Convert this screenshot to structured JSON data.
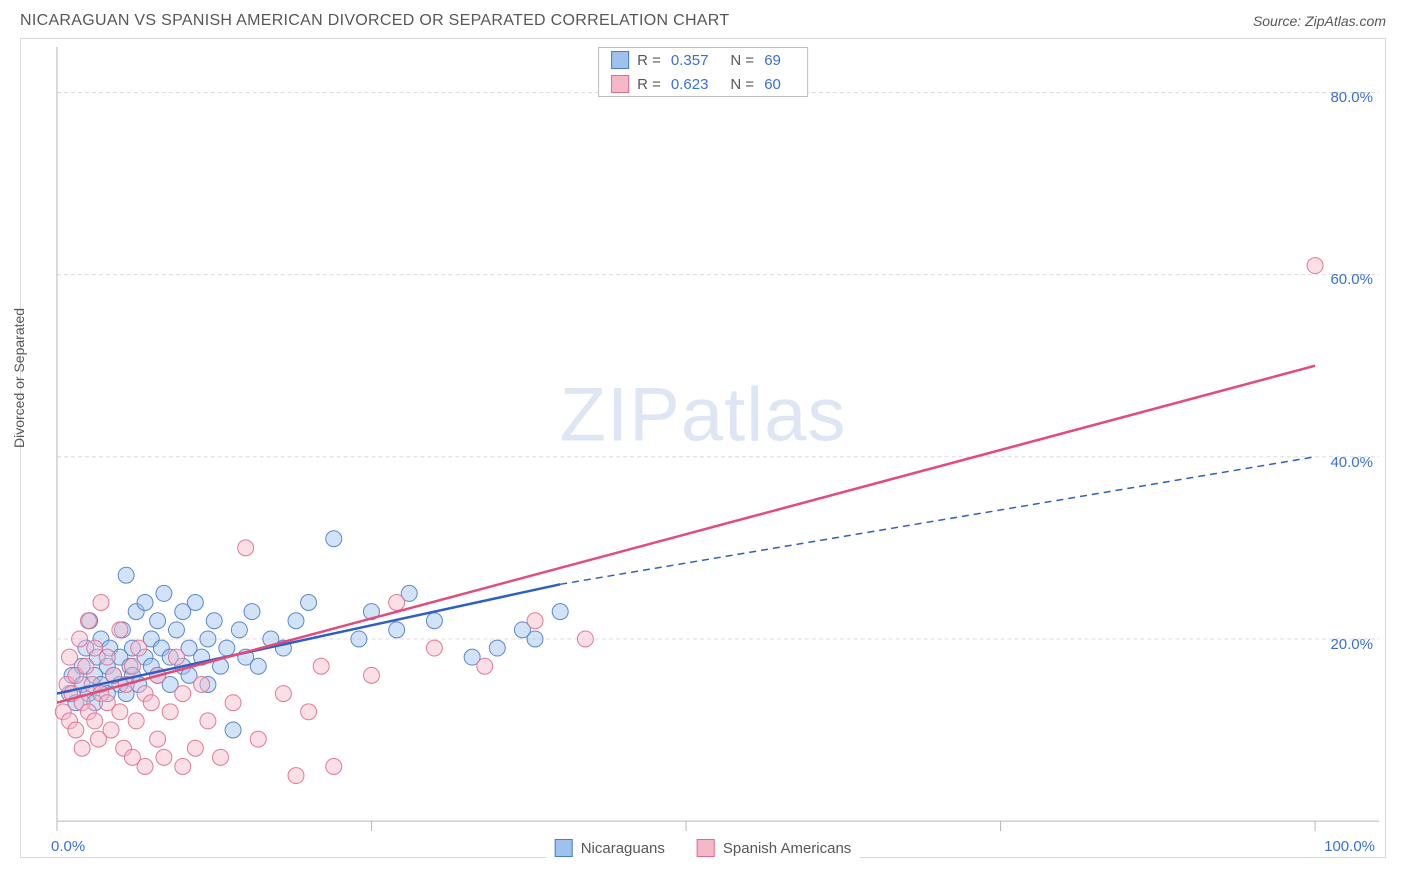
{
  "title": "NICARAGUAN VS SPANISH AMERICAN DIVORCED OR SEPARATED CORRELATION CHART",
  "source": "Source: ZipAtlas.com",
  "watermark": "ZIPatlas",
  "ylabel": "Divorced or Separated",
  "chart": {
    "type": "scatter",
    "background_color": "#ffffff",
    "grid_color": "#dcdcdc",
    "grid_dash": "4,3",
    "axis_color": "#b8b8b8",
    "xlim": [
      0,
      100
    ],
    "ylim": [
      0,
      85
    ],
    "x_ticks": [
      0,
      100
    ],
    "x_tick_labels": [
      "0.0%",
      "100.0%"
    ],
    "y_ticks": [
      20,
      40,
      60,
      80
    ],
    "y_tick_labels": [
      "20.0%",
      "40.0%",
      "60.0%",
      "80.0%"
    ],
    "tick_label_color": "#3a6fd8",
    "tick_fontsize": 15,
    "marker_radius": 8,
    "marker_opacity": 0.45,
    "marker_stroke_opacity": 0.9,
    "series": [
      {
        "name": "Nicaraguans",
        "color_fill": "#9ec1ed",
        "color_stroke": "#4a7cc9",
        "r": 0.357,
        "n": 69,
        "trend": {
          "x1": 0,
          "y1": 14,
          "x2": 40,
          "y2": 26,
          "color": "#2d5fc4",
          "width": 2.5,
          "extend_x2": 100,
          "extend_y2": 40,
          "dash": "7,5"
        },
        "points": [
          [
            1,
            14
          ],
          [
            1.2,
            16
          ],
          [
            1.5,
            13
          ],
          [
            2,
            15
          ],
          [
            2,
            17
          ],
          [
            2.3,
            19
          ],
          [
            2.5,
            14
          ],
          [
            2.6,
            22
          ],
          [
            3,
            16
          ],
          [
            3,
            13
          ],
          [
            3.2,
            18
          ],
          [
            3.5,
            15
          ],
          [
            3.5,
            20
          ],
          [
            4,
            17
          ],
          [
            4,
            14
          ],
          [
            4.2,
            19
          ],
          [
            4.5,
            16
          ],
          [
            5,
            15
          ],
          [
            5,
            18
          ],
          [
            5.2,
            21
          ],
          [
            5.5,
            14
          ],
          [
            5.5,
            27
          ],
          [
            5.8,
            17
          ],
          [
            6,
            16
          ],
          [
            6,
            19
          ],
          [
            6.3,
            23
          ],
          [
            6.5,
            15
          ],
          [
            7,
            18
          ],
          [
            7,
            24
          ],
          [
            7.5,
            17
          ],
          [
            7.5,
            20
          ],
          [
            8,
            16
          ],
          [
            8,
            22
          ],
          [
            8.3,
            19
          ],
          [
            8.5,
            25
          ],
          [
            9,
            18
          ],
          [
            9,
            15
          ],
          [
            9.5,
            21
          ],
          [
            10,
            17
          ],
          [
            10,
            23
          ],
          [
            10.5,
            16
          ],
          [
            10.5,
            19
          ],
          [
            11,
            24
          ],
          [
            11.5,
            18
          ],
          [
            12,
            20
          ],
          [
            12,
            15
          ],
          [
            12.5,
            22
          ],
          [
            13,
            17
          ],
          [
            13.5,
            19
          ],
          [
            14,
            10
          ],
          [
            14.5,
            21
          ],
          [
            15,
            18
          ],
          [
            15.5,
            23
          ],
          [
            16,
            17
          ],
          [
            17,
            20
          ],
          [
            18,
            19
          ],
          [
            19,
            22
          ],
          [
            20,
            24
          ],
          [
            22,
            31
          ],
          [
            24,
            20
          ],
          [
            25,
            23
          ],
          [
            27,
            21
          ],
          [
            28,
            25
          ],
          [
            30,
            22
          ],
          [
            33,
            18
          ],
          [
            35,
            19
          ],
          [
            37,
            21
          ],
          [
            38,
            20
          ],
          [
            40,
            23
          ]
        ]
      },
      {
        "name": "Spanish Americans",
        "color_fill": "#f5b8c9",
        "color_stroke": "#e06b8f",
        "r": 0.623,
        "n": 60,
        "trend": {
          "x1": 0,
          "y1": 13,
          "x2": 100,
          "y2": 50,
          "color": "#e34b7a",
          "width": 2.5
        },
        "points": [
          [
            0.5,
            12
          ],
          [
            0.8,
            15
          ],
          [
            1,
            11
          ],
          [
            1,
            18
          ],
          [
            1.2,
            14
          ],
          [
            1.5,
            10
          ],
          [
            1.5,
            16
          ],
          [
            1.8,
            20
          ],
          [
            2,
            13
          ],
          [
            2,
            8
          ],
          [
            2.3,
            17
          ],
          [
            2.5,
            12
          ],
          [
            2.5,
            22
          ],
          [
            2.8,
            15
          ],
          [
            3,
            11
          ],
          [
            3,
            19
          ],
          [
            3.3,
            9
          ],
          [
            3.5,
            14
          ],
          [
            3.5,
            24
          ],
          [
            4,
            13
          ],
          [
            4,
            18
          ],
          [
            4.3,
            10
          ],
          [
            4.5,
            16
          ],
          [
            5,
            12
          ],
          [
            5,
            21
          ],
          [
            5.3,
            8
          ],
          [
            5.5,
            15
          ],
          [
            6,
            7
          ],
          [
            6,
            17
          ],
          [
            6.3,
            11
          ],
          [
            6.5,
            19
          ],
          [
            7,
            6
          ],
          [
            7,
            14
          ],
          [
            7.5,
            13
          ],
          [
            8,
            9
          ],
          [
            8,
            16
          ],
          [
            8.5,
            7
          ],
          [
            9,
            12
          ],
          [
            9.5,
            18
          ],
          [
            10,
            6
          ],
          [
            10,
            14
          ],
          [
            11,
            8
          ],
          [
            11.5,
            15
          ],
          [
            12,
            11
          ],
          [
            13,
            7
          ],
          [
            14,
            13
          ],
          [
            15,
            30
          ],
          [
            16,
            9
          ],
          [
            18,
            14
          ],
          [
            19,
            5
          ],
          [
            20,
            12
          ],
          [
            21,
            17
          ],
          [
            22,
            6
          ],
          [
            25,
            16
          ],
          [
            27,
            24
          ],
          [
            30,
            19
          ],
          [
            34,
            17
          ],
          [
            38,
            22
          ],
          [
            42,
            20
          ],
          [
            100,
            61
          ]
        ]
      }
    ]
  },
  "legend_bottom": [
    {
      "label": "Nicaraguans",
      "fill": "#9ec1ed",
      "stroke": "#4a7cc9"
    },
    {
      "label": "Spanish Americans",
      "fill": "#f5b8c9",
      "stroke": "#e06b8f"
    }
  ]
}
